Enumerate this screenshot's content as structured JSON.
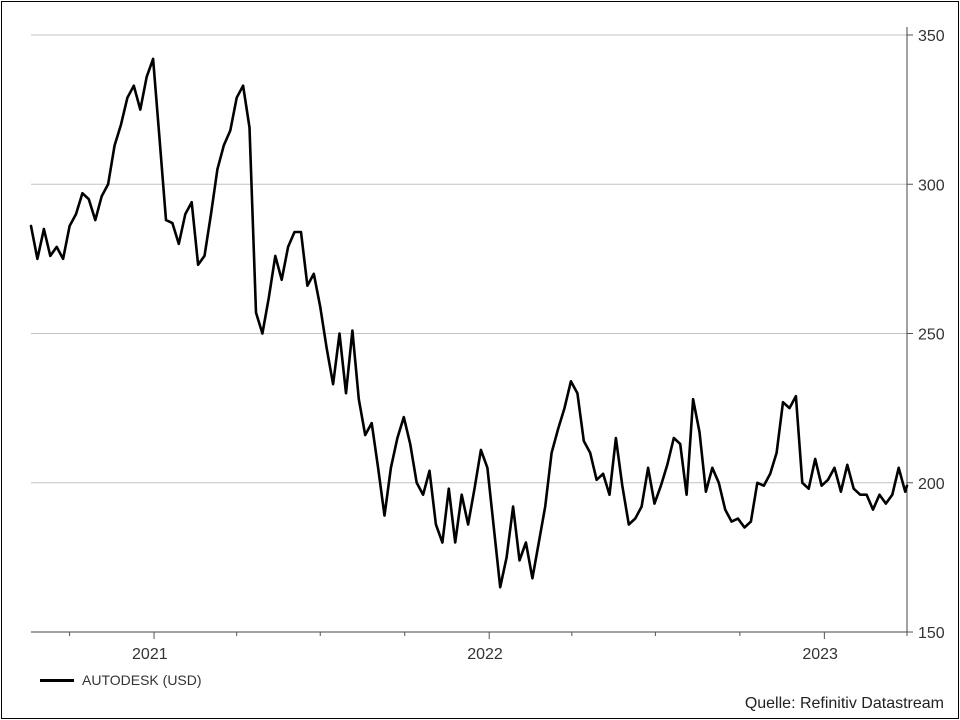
{
  "chart_data": {
    "type": "line",
    "title": "",
    "xlabel": "",
    "ylabel": "",
    "ylim": [
      150,
      350
    ],
    "xlim": [
      "2020-08-20",
      "2023-04-01"
    ],
    "yticks": [
      150,
      200,
      250,
      300,
      350
    ],
    "xtick_labels": [
      {
        "label": "2021",
        "date": "2021-01-01"
      },
      {
        "label": "2022",
        "date": "2022-01-01"
      },
      {
        "label": "2023",
        "date": "2023-01-01"
      }
    ],
    "quarter_ticks": [
      "2020-10-01",
      "2021-01-01",
      "2021-04-01",
      "2021-07-01",
      "2021-10-01",
      "2022-01-01",
      "2022-04-01",
      "2022-07-01",
      "2022-10-01",
      "2023-01-01",
      "2023-04-01"
    ],
    "grid": true,
    "legend_position": "bottom-left",
    "series": [
      {
        "name": "AUTODESK (USD)",
        "color": "#000000",
        "points": [
          [
            "2020-08-20",
            286
          ],
          [
            "2020-08-27",
            275
          ],
          [
            "2020-09-03",
            285
          ],
          [
            "2020-09-10",
            276
          ],
          [
            "2020-09-17",
            279
          ],
          [
            "2020-09-24",
            275
          ],
          [
            "2020-10-01",
            286
          ],
          [
            "2020-10-08",
            290
          ],
          [
            "2020-10-15",
            297
          ],
          [
            "2020-10-22",
            295
          ],
          [
            "2020-10-29",
            288
          ],
          [
            "2020-11-05",
            296
          ],
          [
            "2020-11-12",
            300
          ],
          [
            "2020-11-19",
            313
          ],
          [
            "2020-11-26",
            320
          ],
          [
            "2020-12-03",
            329
          ],
          [
            "2020-12-10",
            333
          ],
          [
            "2020-12-17",
            325
          ],
          [
            "2020-12-24",
            336
          ],
          [
            "2020-12-31",
            342
          ],
          [
            "2021-01-07",
            315
          ],
          [
            "2021-01-14",
            288
          ],
          [
            "2021-01-21",
            287
          ],
          [
            "2021-01-28",
            280
          ],
          [
            "2021-02-04",
            290
          ],
          [
            "2021-02-11",
            294
          ],
          [
            "2021-02-18",
            273
          ],
          [
            "2021-02-25",
            276
          ],
          [
            "2021-03-04",
            290
          ],
          [
            "2021-03-11",
            305
          ],
          [
            "2021-03-18",
            313
          ],
          [
            "2021-03-25",
            318
          ],
          [
            "2021-04-01",
            329
          ],
          [
            "2021-04-08",
            333
          ],
          [
            "2021-04-15",
            319
          ],
          [
            "2021-04-22",
            257
          ],
          [
            "2021-04-29",
            250
          ],
          [
            "2021-05-06",
            262
          ],
          [
            "2021-05-13",
            276
          ],
          [
            "2021-05-20",
            268
          ],
          [
            "2021-05-27",
            279
          ],
          [
            "2021-06-03",
            284
          ],
          [
            "2021-06-10",
            284
          ],
          [
            "2021-06-17",
            266
          ],
          [
            "2021-06-24",
            270
          ],
          [
            "2021-07-01",
            259
          ],
          [
            "2021-07-08",
            245
          ],
          [
            "2021-07-15",
            233
          ],
          [
            "2021-07-22",
            250
          ],
          [
            "2021-07-29",
            230
          ],
          [
            "2021-08-05",
            251
          ],
          [
            "2021-08-12",
            228
          ],
          [
            "2021-08-19",
            216
          ],
          [
            "2021-08-26",
            220
          ],
          [
            "2021-09-02",
            205
          ],
          [
            "2021-09-09",
            189
          ],
          [
            "2021-09-16",
            205
          ],
          [
            "2021-09-23",
            215
          ],
          [
            "2021-09-30",
            222
          ],
          [
            "2021-10-07",
            213
          ],
          [
            "2021-10-14",
            200
          ],
          [
            "2021-10-21",
            196
          ],
          [
            "2021-10-28",
            204
          ],
          [
            "2021-11-04",
            186
          ],
          [
            "2021-11-11",
            180
          ],
          [
            "2021-11-18",
            198
          ],
          [
            "2021-11-25",
            180
          ],
          [
            "2021-12-02",
            196
          ],
          [
            "2021-12-09",
            186
          ],
          [
            "2021-12-16",
            198
          ],
          [
            "2021-12-23",
            211
          ],
          [
            "2021-12-30",
            205
          ],
          [
            "2022-01-06",
            185
          ],
          [
            "2022-01-13",
            165
          ],
          [
            "2022-01-20",
            175
          ],
          [
            "2022-01-27",
            192
          ],
          [
            "2022-02-03",
            174
          ],
          [
            "2022-02-10",
            180
          ],
          [
            "2022-02-17",
            168
          ],
          [
            "2022-02-24",
            180
          ],
          [
            "2022-03-03",
            192
          ],
          [
            "2022-03-10",
            210
          ],
          [
            "2022-03-17",
            218
          ],
          [
            "2022-03-24",
            225
          ],
          [
            "2022-03-31",
            234
          ],
          [
            "2022-04-07",
            230
          ],
          [
            "2022-04-14",
            214
          ],
          [
            "2022-04-21",
            210
          ],
          [
            "2022-04-28",
            201
          ],
          [
            "2022-05-05",
            203
          ],
          [
            "2022-05-12",
            196
          ],
          [
            "2022-05-19",
            215
          ],
          [
            "2022-05-26",
            199
          ],
          [
            "2022-06-02",
            186
          ],
          [
            "2022-06-09",
            188
          ],
          [
            "2022-06-16",
            192
          ],
          [
            "2022-06-23",
            205
          ],
          [
            "2022-06-30",
            193
          ],
          [
            "2022-07-07",
            199
          ],
          [
            "2022-07-14",
            206
          ],
          [
            "2022-07-21",
            215
          ],
          [
            "2022-07-28",
            213
          ],
          [
            "2022-08-04",
            196
          ],
          [
            "2022-08-11",
            228
          ],
          [
            "2022-08-18",
            217
          ],
          [
            "2022-08-25",
            197
          ],
          [
            "2022-09-01",
            205
          ],
          [
            "2022-09-08",
            200
          ],
          [
            "2022-09-15",
            191
          ],
          [
            "2022-09-22",
            187
          ],
          [
            "2022-09-29",
            188
          ],
          [
            "2022-10-06",
            185
          ],
          [
            "2022-10-13",
            187
          ],
          [
            "2022-10-20",
            200
          ],
          [
            "2022-10-27",
            199
          ],
          [
            "2022-11-03",
            203
          ],
          [
            "2022-11-10",
            210
          ],
          [
            "2022-11-17",
            227
          ],
          [
            "2022-11-24",
            225
          ],
          [
            "2022-12-01",
            229
          ],
          [
            "2022-12-08",
            200
          ],
          [
            "2022-12-15",
            198
          ],
          [
            "2022-12-22",
            208
          ],
          [
            "2022-12-29",
            199
          ],
          [
            "2023-01-05",
            201
          ],
          [
            "2023-01-12",
            205
          ],
          [
            "2023-01-19",
            197
          ],
          [
            "2023-01-26",
            206
          ],
          [
            "2023-02-02",
            198
          ],
          [
            "2023-02-09",
            196
          ],
          [
            "2023-02-16",
            196
          ],
          [
            "2023-02-23",
            191
          ],
          [
            "2023-03-02",
            196
          ],
          [
            "2023-03-09",
            193
          ],
          [
            "2023-03-16",
            196
          ],
          [
            "2023-03-23",
            205
          ],
          [
            "2023-03-30",
            197
          ],
          [
            "2023-04-01",
            199
          ]
        ]
      }
    ]
  },
  "legend": {
    "label": "AUTODESK (USD)"
  },
  "source": "Quelle: Refinitiv Datastream"
}
